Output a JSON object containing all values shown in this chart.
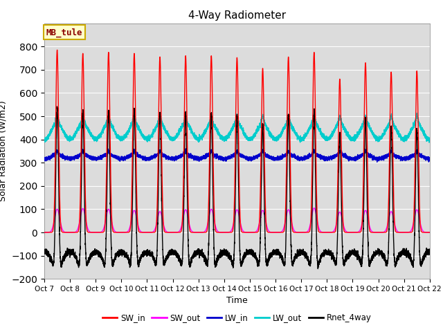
{
  "title": "4-Way Radiometer",
  "xlabel": "Time",
  "ylabel": "Solar Radiation (W/m2)",
  "ylim": [
    -200,
    900
  ],
  "yticks": [
    -200,
    -100,
    0,
    100,
    200,
    300,
    400,
    500,
    600,
    700,
    800
  ],
  "n_days": 15,
  "xtick_labels": [
    "Oct 7",
    "Oct 8",
    "Oct 9",
    "Oct 10",
    "Oct 11",
    "Oct 12",
    "Oct 13",
    "Oct 14",
    "Oct 15",
    "Oct 16",
    "Oct 17",
    "Oct 18",
    "Oct 19",
    "Oct 20",
    "Oct 21",
    "Oct 22"
  ],
  "sw_in_peaks": [
    785,
    770,
    775,
    770,
    755,
    760,
    760,
    752,
    706,
    755,
    775,
    660,
    730,
    690,
    695
  ],
  "sw_out_peaks": [
    100,
    103,
    100,
    95,
    90,
    98,
    100,
    98,
    95,
    98,
    105,
    88,
    95,
    90,
    98
  ],
  "lw_in_base": 310,
  "lw_out_base": 390,
  "colors": {
    "SW_in": "#FF0000",
    "SW_out": "#FF00FF",
    "LW_in": "#0000CC",
    "LW_out": "#00CCCC",
    "Rnet_4way": "#000000"
  },
  "bg_color": "#DCDCDC",
  "annotation_text": "MB_tule",
  "annotation_fg": "#8B0000",
  "annotation_bg": "#FFFFCC",
  "annotation_edge": "#CCAA00"
}
